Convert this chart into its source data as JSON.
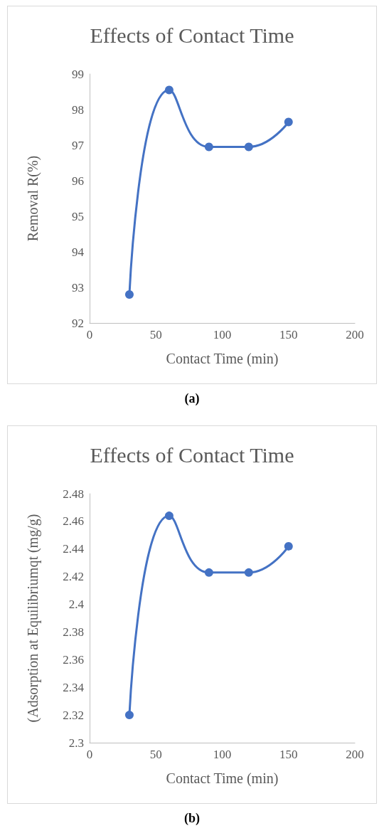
{
  "chart_data": [
    {
      "type": "line",
      "title": "Effects of Contact Time",
      "xlabel": "Contact Time (min)",
      "ylabel": "Removal R(%)",
      "x": [
        30,
        60,
        90,
        120,
        150
      ],
      "series": [
        {
          "color": "#4472c4",
          "values": [
            92.8,
            98.55,
            96.95,
            96.95,
            97.65
          ]
        }
      ],
      "xlim": [
        0,
        200
      ],
      "xticks": [
        0,
        50,
        100,
        150,
        200
      ],
      "ylim": [
        92,
        99
      ],
      "yticks": [
        92,
        93,
        94,
        95,
        96,
        97,
        98,
        99
      ],
      "grid": false,
      "marker": "circle",
      "line_style": "solid",
      "annotations": [
        "(a)"
      ]
    },
    {
      "type": "line",
      "title": "Effects of Contact Time",
      "xlabel": "Contact Time (min)",
      "ylabel": "(Adsorption at Equilibriumqt (mg/g)",
      "x": [
        30,
        60,
        90,
        120,
        150
      ],
      "series": [
        {
          "color": "#4472c4",
          "values": [
            2.32,
            2.464,
            2.423,
            2.423,
            2.442
          ]
        }
      ],
      "xlim": [
        0,
        200
      ],
      "xticks": [
        0,
        50,
        100,
        150,
        200
      ],
      "ylim": [
        2.3,
        2.48
      ],
      "yticks": [
        2.3,
        2.32,
        2.34,
        2.36,
        2.38,
        2.4,
        2.42,
        2.44,
        2.46,
        2.48
      ],
      "grid": false,
      "marker": "circle",
      "line_style": "solid",
      "annotations": [
        "(b)"
      ]
    }
  ]
}
